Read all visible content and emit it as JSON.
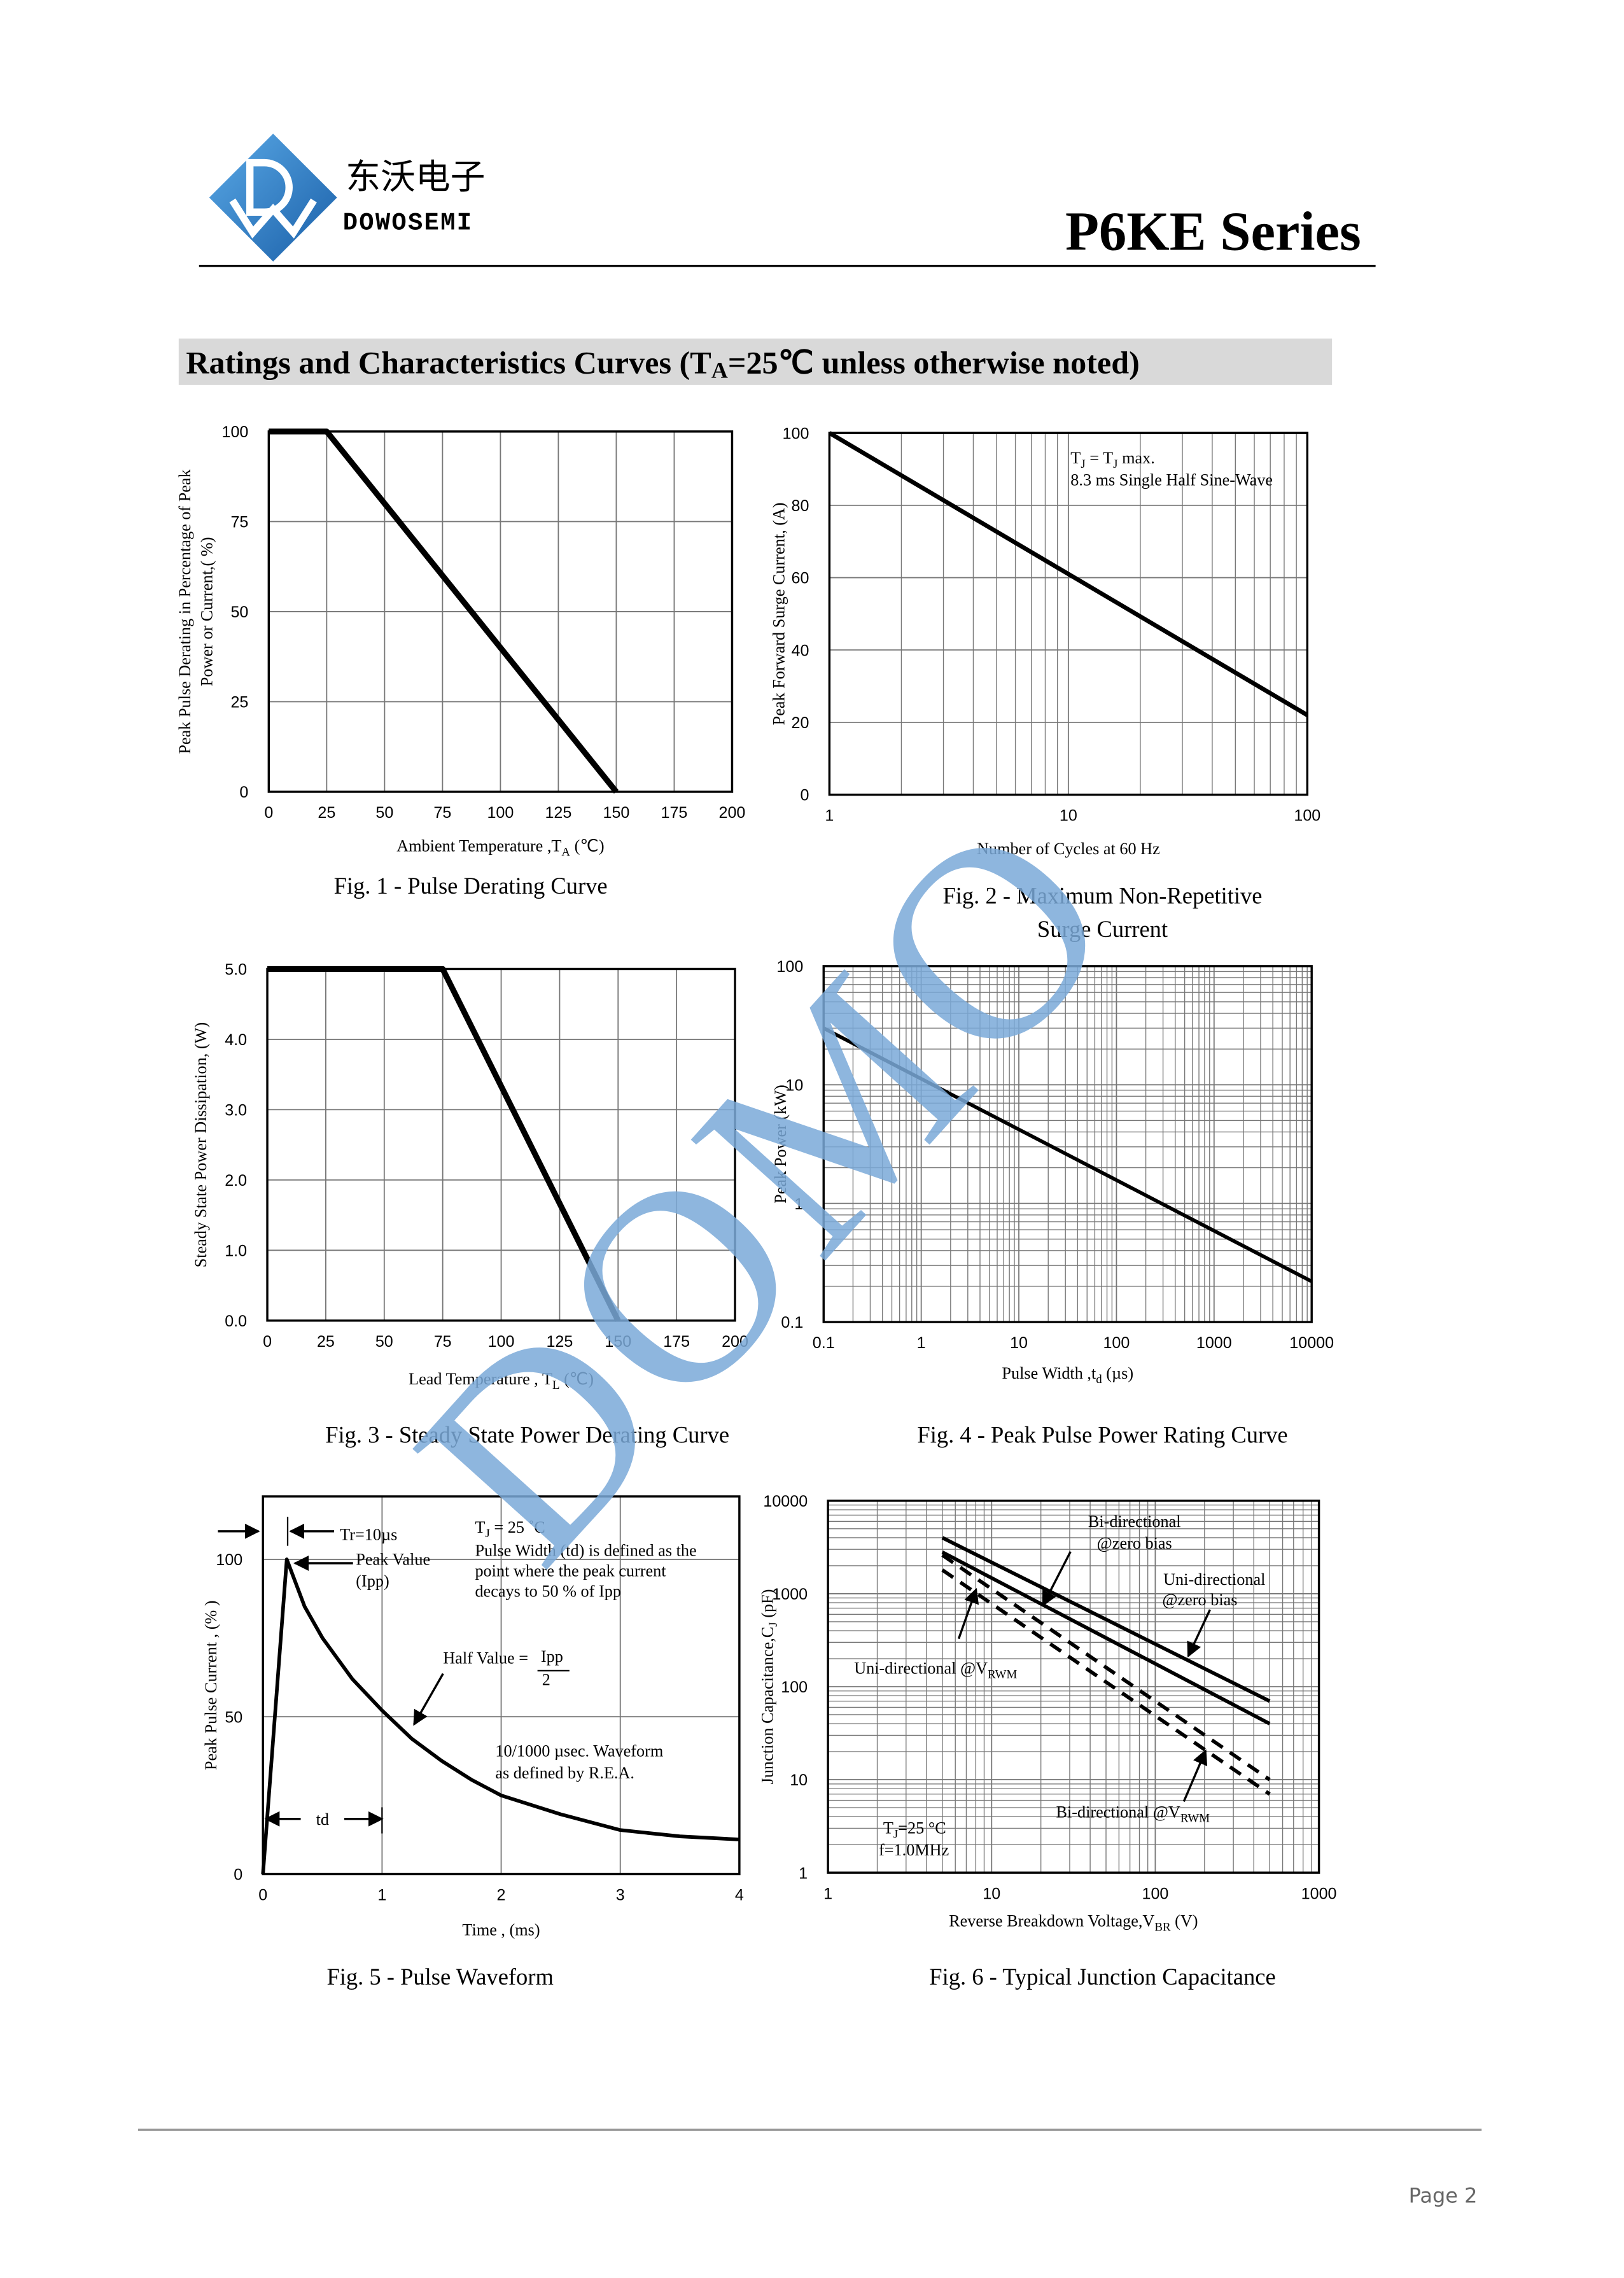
{
  "header": {
    "company_cn": "东沃电子",
    "company_en": "DOWOSEMI",
    "series": "P6KE Series"
  },
  "section_title": [
    "Ratings and Characteristics Curves (T",
    "A",
    "=25℃ unless otherwise noted)"
  ],
  "watermark": "DOMO",
  "chart_data": [
    {
      "type": "line",
      "caption": [
        "Fig. 1 - Pulse Derating Curve"
      ],
      "x_label": [
        [
          "Ambient Temperature ,T",
          "A",
          " (℃)"
        ]
      ],
      "y_label": [
        [
          "Peak Pulse Derating in Percentage of Peak"
        ],
        [
          "Power or Current,( %)"
        ]
      ],
      "xlim": [
        0,
        200
      ],
      "xticks": [
        0,
        25,
        50,
        75,
        100,
        125,
        150,
        175,
        200
      ],
      "ylim": [
        0,
        100
      ],
      "yticks": [
        0,
        25,
        50,
        75,
        100
      ],
      "grid": true,
      "series": [
        {
          "color": "#000000",
          "x": [
            0,
            25,
            150
          ],
          "values": [
            100,
            100,
            0
          ]
        }
      ]
    },
    {
      "type": "line",
      "caption": [
        "Fig. 2 - Maximum Non-Repetitive",
        "Surge Current"
      ],
      "x_label": [
        [
          "Number of Cycles at 60 Hz"
        ]
      ],
      "y_label": [
        [
          "Peak Forward Surge Current, (A)"
        ]
      ],
      "xscale": "log",
      "xlim": [
        1,
        100
      ],
      "xticks": [
        1,
        10,
        100
      ],
      "ylim": [
        0,
        100
      ],
      "yticks": [
        0,
        20,
        40,
        60,
        80,
        100
      ],
      "grid": true,
      "annotations": [
        [
          "T",
          "J",
          " = T",
          "J",
          " max."
        ],
        [
          "8.3 ms Single Half Sine-Wave"
        ]
      ],
      "series": [
        {
          "color": "#000000",
          "x": [
            1,
            100
          ],
          "values": [
            100,
            22
          ]
        }
      ]
    },
    {
      "type": "line",
      "caption": [
        "Fig. 3 - Steady State Power Derating Curve"
      ],
      "x_label": [
        [
          "Lead Temperature , T",
          "L",
          " (℃)"
        ]
      ],
      "y_label": [
        [
          "Steady State Power Dissipation, (W)"
        ]
      ],
      "xlim": [
        0,
        200
      ],
      "xticks": [
        0,
        25,
        50,
        75,
        100,
        125,
        150,
        175,
        200
      ],
      "ylim": [
        0,
        5
      ],
      "yticks": [
        {
          "value": 0,
          "label": "0.0"
        },
        {
          "value": 1,
          "label": "1.0"
        },
        {
          "value": 2,
          "label": "2.0"
        },
        {
          "value": 3,
          "label": "3.0"
        },
        {
          "value": 4,
          "label": "4.0"
        },
        {
          "value": 5,
          "label": "5.0"
        }
      ],
      "grid": true,
      "series": [
        {
          "color": "#000000",
          "x": [
            0,
            75,
            150
          ],
          "values": [
            5,
            5,
            0
          ]
        }
      ]
    },
    {
      "type": "line",
      "caption": [
        "Fig. 4 - Peak Pulse Power Rating Curve"
      ],
      "x_label": [
        [
          "Pulse Width ,t",
          "d",
          " (µs)"
        ]
      ],
      "y_label": [
        [
          "Peak Power (kW)"
        ]
      ],
      "xscale": "log",
      "xlim": [
        0.1,
        10000
      ],
      "xticks": [
        0.1,
        1,
        10,
        100,
        1000,
        10000
      ],
      "yscale": "log",
      "ylim": [
        0.1,
        100
      ],
      "yticks": [
        0.1,
        1,
        10,
        100
      ],
      "grid": true,
      "series": [
        {
          "color": "#000000",
          "x": [
            0.1,
            10000
          ],
          "values": [
            30,
            0.22
          ]
        }
      ]
    },
    {
      "type": "line",
      "caption": [
        "Fig. 5 - Pulse Waveform"
      ],
      "x_label": [
        [
          "Time , (ms)"
        ]
      ],
      "y_label": [
        [
          "Peak Pulse Current , (% )"
        ]
      ],
      "xlim": [
        0,
        4
      ],
      "xticks": [
        0,
        1,
        2,
        3,
        4
      ],
      "ylim": [
        0,
        120
      ],
      "yticks": [
        0,
        50,
        100
      ],
      "grid": true,
      "annotations": [
        [
          "Tr=10µs"
        ],
        [
          "Peak Value"
        ],
        [
          "(Ipp)"
        ],
        [
          "T",
          "J",
          " = 25 ˚C"
        ],
        [
          "Pulse Width (td) is defined as the"
        ],
        [
          "point where the peak current"
        ],
        [
          "decays to 50 % of Ipp"
        ],
        [
          "Half Value = "
        ],
        [
          "Ipp"
        ],
        [
          "2"
        ],
        [
          "10/1000 µsec. Waveform"
        ],
        [
          "as defined by R.E.A."
        ],
        [
          "td"
        ]
      ],
      "series": [
        {
          "color": "#000000",
          "x": [
            0,
            0.2,
            0.35,
            0.5,
            0.75,
            1,
            1.25,
            1.5,
            1.75,
            2,
            2.5,
            3,
            3.5,
            4
          ],
          "values": [
            0,
            100,
            85,
            75,
            62,
            52,
            43,
            36,
            30,
            25,
            19,
            14,
            12,
            11
          ]
        }
      ]
    },
    {
      "type": "line",
      "caption": [
        "Fig. 6 - Typical Junction Capacitance"
      ],
      "x_label": [
        [
          "Reverse  Breakdown Voltage,V",
          "BR",
          "  (V)"
        ]
      ],
      "y_label": [
        [
          "Junction Capacitance,C",
          "J",
          "  (pF)"
        ]
      ],
      "xscale": "log",
      "xlim": [
        1,
        1000
      ],
      "xticks": [
        1,
        10,
        100,
        1000
      ],
      "yscale": "log",
      "ylim": [
        1,
        10000
      ],
      "yticks": [
        1,
        10,
        100,
        1000,
        10000
      ],
      "grid": true,
      "annotations": [
        [
          "Bi-directional"
        ],
        [
          "@zero bias"
        ],
        [
          "Uni-directional"
        ],
        [
          "@zero bias"
        ],
        [
          "Uni-directional @V",
          "RWM"
        ],
        [
          "Bi-directional @V",
          "RWM"
        ],
        [
          "T",
          "J",
          "=25 °C"
        ],
        [
          "f=1.0MHz"
        ]
      ],
      "series": [
        {
          "color": "#000000",
          "x": [
            5,
            500
          ],
          "values": [
            4000,
            70
          ]
        },
        {
          "color": "#000000",
          "x": [
            5,
            500
          ],
          "values": [
            2800,
            40
          ]
        },
        {
          "color": "#000000",
          "dashed": true,
          "x": [
            5,
            500
          ],
          "values": [
            2600,
            10
          ]
        },
        {
          "color": "#000000",
          "dashed": true,
          "x": [
            5,
            500
          ],
          "values": [
            1800,
            7
          ]
        }
      ]
    }
  ],
  "footer": {
    "page": "Page 2"
  }
}
